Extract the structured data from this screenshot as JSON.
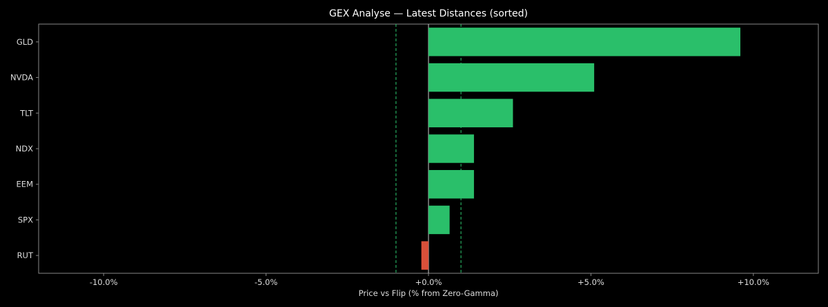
{
  "chart_data": {
    "type": "bar",
    "orientation": "horizontal",
    "title": "GEX Analyse — Latest Distances (sorted)",
    "xlabel": "Price vs Flip (% from Zero-Gamma)",
    "ylabel": "",
    "xlim": [
      -12.0,
      12.0
    ],
    "xticks": [
      -10,
      -5,
      0,
      5,
      10
    ],
    "xtick_labels": [
      "-10.0%",
      "-5.0%",
      "+0.0%",
      "+5.0%",
      "+10.0%"
    ],
    "categories": [
      "GLD",
      "NVDA",
      "TLT",
      "NDX",
      "EEM",
      "SPX",
      "RUT"
    ],
    "values": [
      9.6,
      5.1,
      2.6,
      1.4,
      1.4,
      0.65,
      -0.22
    ],
    "reference_lines": [
      {
        "x": 0,
        "style": "solid",
        "color": "#cccccc"
      },
      {
        "x": -1,
        "style": "dashed",
        "color": "#2ecc71"
      },
      {
        "x": 1,
        "style": "dashed",
        "color": "#2ecc71"
      }
    ],
    "colors": {
      "positive": "#2abf6a",
      "negative": "#d9503a",
      "background": "#000000",
      "axes_edge": "#888888",
      "text": "#dddddd"
    },
    "grid": false,
    "legend": "none"
  }
}
